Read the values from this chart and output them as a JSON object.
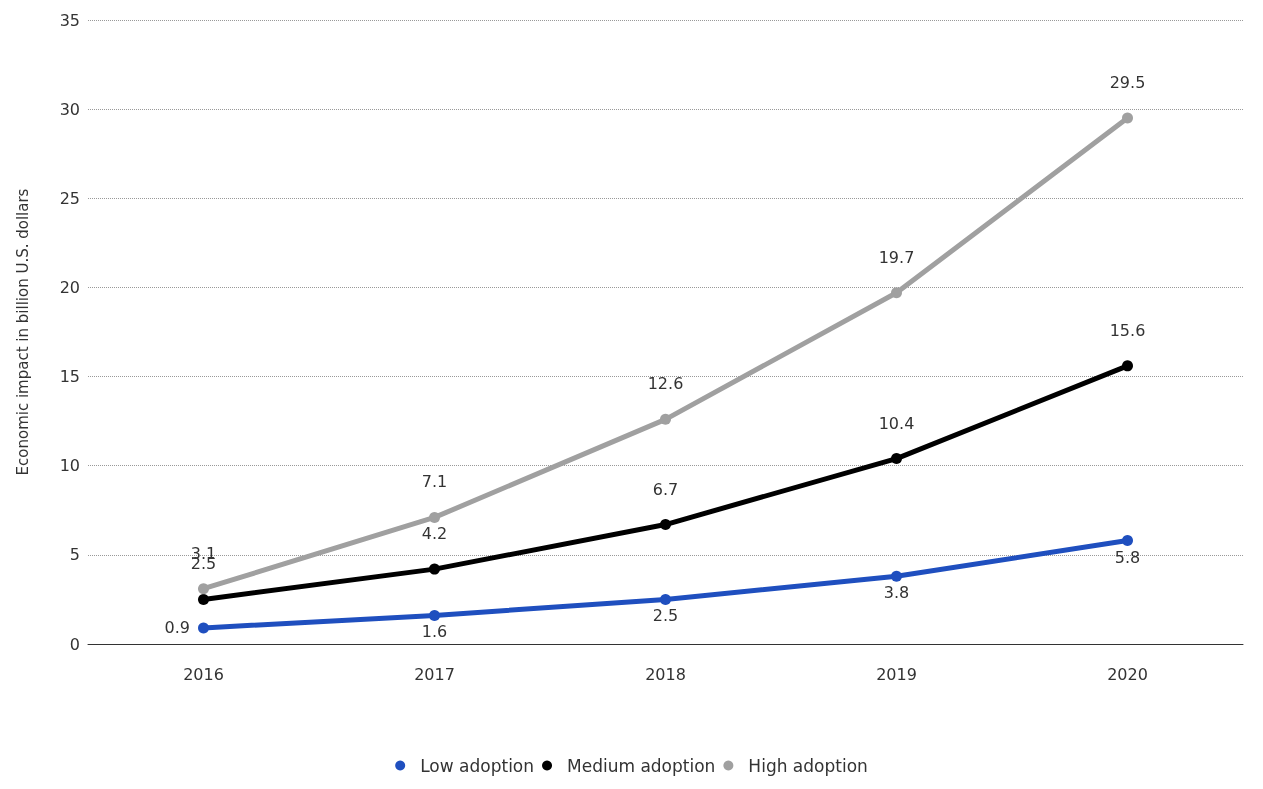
{
  "chart_data": {
    "type": "line",
    "ylabel": "Economic impact in billion U.S. dollars",
    "categories": [
      "2016",
      "2017",
      "2018",
      "2019",
      "2020"
    ],
    "series": [
      {
        "name": "Low adoption",
        "color": "#1f4fbf",
        "values": [
          0.9,
          1.6,
          2.5,
          3.8,
          5.8
        ]
      },
      {
        "name": "Medium adoption",
        "color": "#000000",
        "values": [
          2.5,
          4.2,
          6.7,
          10.4,
          15.6
        ]
      },
      {
        "name": "High adoption",
        "color": "#a0a0a0",
        "values": [
          3.1,
          7.1,
          12.6,
          19.7,
          29.5
        ]
      }
    ],
    "ylim": [
      0,
      35
    ],
    "yticks": [
      0,
      5,
      10,
      15,
      20,
      25,
      30,
      35
    ],
    "grid": "y",
    "legend": "bottom",
    "marker": "circle",
    "line_style": "solid",
    "data_labels": true
  }
}
